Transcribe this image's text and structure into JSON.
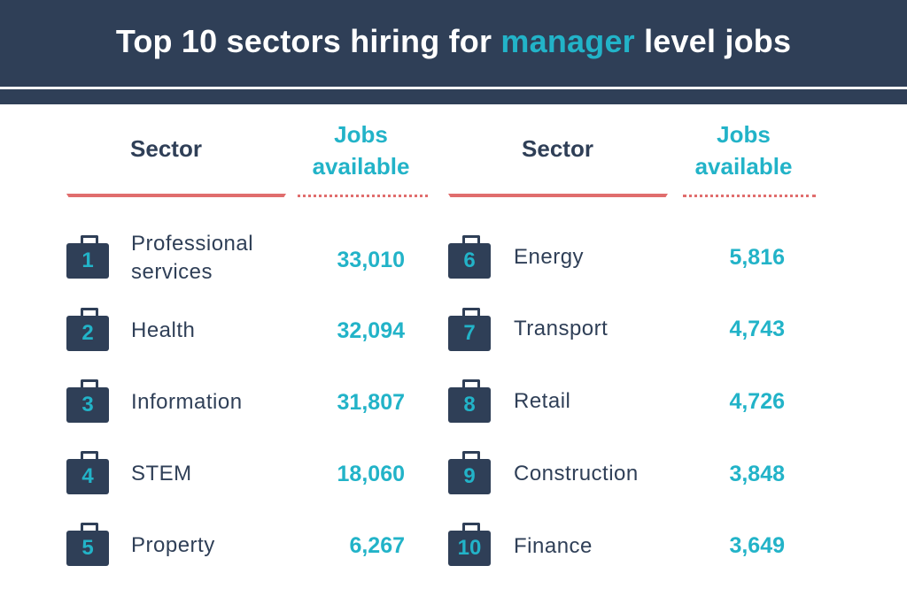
{
  "title": {
    "before": "Top 10 sectors hiring for ",
    "highlight": "manager",
    "after": " level jobs"
  },
  "columns": {
    "sector_label": "Sector",
    "jobs_label_line1": "Jobs",
    "jobs_label_line2": "available"
  },
  "colors": {
    "navy": "#2f3f57",
    "teal": "#22b3c8",
    "coral": "#e06d6d"
  },
  "icon": "briefcase-icon",
  "rows": [
    {
      "rank": "1",
      "sector": "Professional services",
      "jobs": "33,010"
    },
    {
      "rank": "2",
      "sector": "Health",
      "jobs": "32,094"
    },
    {
      "rank": "3",
      "sector": "Information",
      "jobs": "31,807"
    },
    {
      "rank": "4",
      "sector": "STEM",
      "jobs": "18,060"
    },
    {
      "rank": "5",
      "sector": "Property",
      "jobs": "6,267"
    },
    {
      "rank": "6",
      "sector": "Energy",
      "jobs": "5,816"
    },
    {
      "rank": "7",
      "sector": "Transport",
      "jobs": "4,743"
    },
    {
      "rank": "8",
      "sector": "Retail",
      "jobs": "4,726"
    },
    {
      "rank": "9",
      "sector": "Construction",
      "jobs": "3,848"
    },
    {
      "rank": "10",
      "sector": "Finance",
      "jobs": "3,649"
    }
  ]
}
